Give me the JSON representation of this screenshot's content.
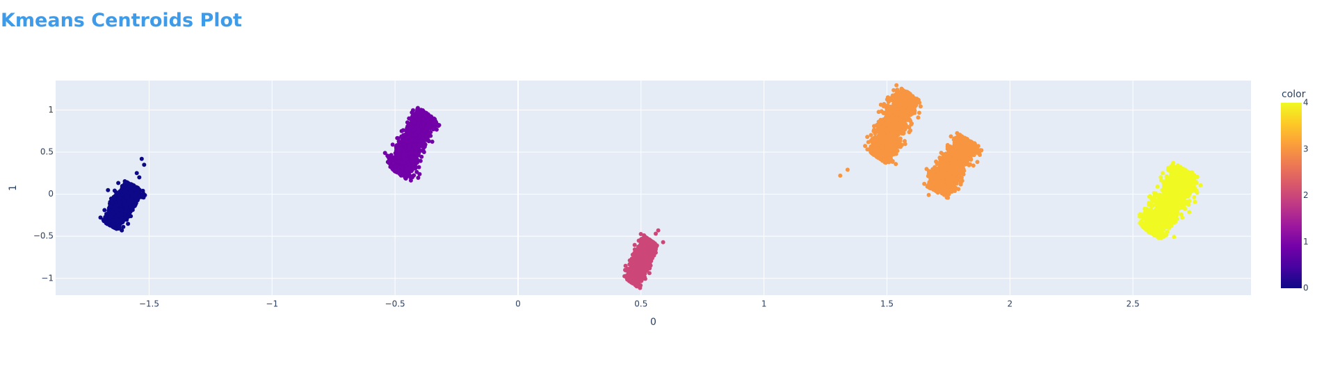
{
  "chart_data": {
    "type": "scatter",
    "title": "Kmeans Centroids Plot",
    "xlabel": "0",
    "ylabel": "1",
    "xlim": [
      -1.88,
      2.98
    ],
    "ylim": [
      -1.2,
      1.35
    ],
    "x_ticks": [
      -1.5,
      -1,
      -0.5,
      0,
      0.5,
      1,
      1.5,
      2,
      2.5
    ],
    "x_tick_labels": [
      "−1.5",
      "−1",
      "−0.5",
      "0",
      "0.5",
      "1",
      "1.5",
      "2",
      "2.5"
    ],
    "y_ticks": [
      -1,
      -0.5,
      0,
      0.5,
      1
    ],
    "y_tick_labels": [
      "−1",
      "−0.5",
      "0",
      "0.5",
      "1"
    ],
    "grid": true,
    "colorbar": {
      "title": "color",
      "min": 0,
      "max": 4,
      "ticks": [
        0,
        1,
        2,
        3,
        4
      ],
      "colors": [
        "#0d0887",
        "#46039f",
        "#7201a8",
        "#9c179e",
        "#bd3786",
        "#d8576b",
        "#ed7953",
        "#fb9f3a",
        "#fdca26",
        "#f0f921"
      ]
    },
    "clusters": [
      {
        "color_value": 0,
        "color": "#0d0887",
        "x_range": [
          -1.66,
          -1.56
        ],
        "y_range": [
          -0.37,
          0.1
        ],
        "outliers": [
          [
            -1.53,
            0.42
          ],
          [
            -1.52,
            0.35
          ],
          [
            -1.54,
            0.2
          ],
          [
            -1.55,
            0.25
          ]
        ]
      },
      {
        "color_value": 1,
        "color": "#7201a8",
        "x_range": [
          -0.49,
          -0.37
        ],
        "y_range": [
          0.25,
          0.96
        ],
        "outliers": [
          [
            -0.36,
            0.93
          ]
        ]
      },
      {
        "color_value": 2,
        "color": "#cc4778",
        "x_range": [
          0.46,
          0.54
        ],
        "y_range": [
          -1.05,
          -0.55
        ],
        "outliers": [
          [
            0.57,
            -0.43
          ],
          [
            0.59,
            -0.57
          ],
          [
            0.56,
            -0.47
          ]
        ]
      },
      {
        "color_value": 3,
        "color": "#f89540",
        "x_range": [
          1.46,
          1.59
        ],
        "y_range": [
          0.44,
          1.2
        ],
        "outliers": [
          [
            1.31,
            0.22
          ],
          [
            1.34,
            0.29
          ]
        ]
      },
      {
        "color_value": 3,
        "color": "#f89540",
        "x_range": [
          1.7,
          1.83
        ],
        "y_range": [
          0.03,
          0.65
        ],
        "outliers": [
          [
            1.67,
            -0.01
          ]
        ]
      },
      {
        "color_value": 4,
        "color": "#f0f921",
        "x_range": [
          2.57,
          2.72
        ],
        "y_range": [
          -0.46,
          0.28
        ],
        "outliers": [
          [
            2.74,
            0.26
          ]
        ]
      }
    ]
  }
}
